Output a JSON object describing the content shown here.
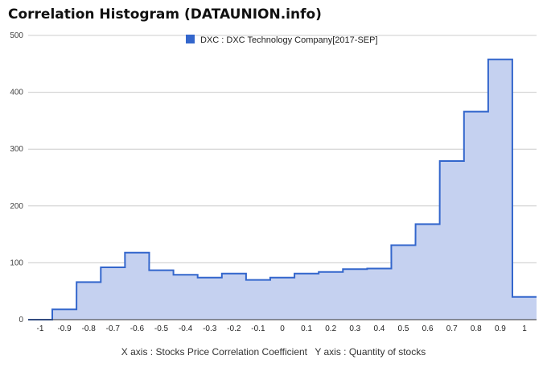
{
  "title": "Correlation Histogram (DATAUNION.info)",
  "legend": {
    "label": "DXC : DXC Technology Company[2017-SEP]",
    "color": "#3366cc",
    "position": "top"
  },
  "footer": {
    "xlabel": "X axis : Stocks Price Correlation Coefficient",
    "ylabel": "Y axis : Quantity of stocks"
  },
  "chart_data": {
    "type": "area",
    "style": "stepped",
    "series": [
      {
        "name": "DXC : DXC Technology Company[2017-SEP]",
        "color": "#3366cc",
        "fill": "#c5d1f0",
        "x": [
          -1,
          -0.9,
          -0.8,
          -0.7,
          -0.6,
          -0.5,
          -0.4,
          -0.3,
          -0.2,
          -0.1,
          0,
          0.1,
          0.2,
          0.3,
          0.4,
          0.5,
          0.6,
          0.7,
          0.8,
          0.9,
          1
        ],
        "values": [
          0,
          18,
          66,
          92,
          118,
          87,
          79,
          74,
          81,
          70,
          74,
          81,
          84,
          89,
          90,
          131,
          168,
          279,
          366,
          458,
          40
        ]
      }
    ],
    "xticks": [
      "-1",
      "-0.9",
      "-0.8",
      "-0.7",
      "-0.6",
      "-0.5",
      "-0.4",
      "-0.3",
      "-0.2",
      "-0.1",
      "0",
      "0.1",
      "0.2",
      "0.3",
      "0.4",
      "0.5",
      "0.6",
      "0.7",
      "0.8",
      "0.9",
      "1"
    ],
    "yticks": [
      "0",
      "100",
      "200",
      "300",
      "400",
      "500"
    ],
    "ylim": [
      0,
      500
    ],
    "grid": true
  }
}
